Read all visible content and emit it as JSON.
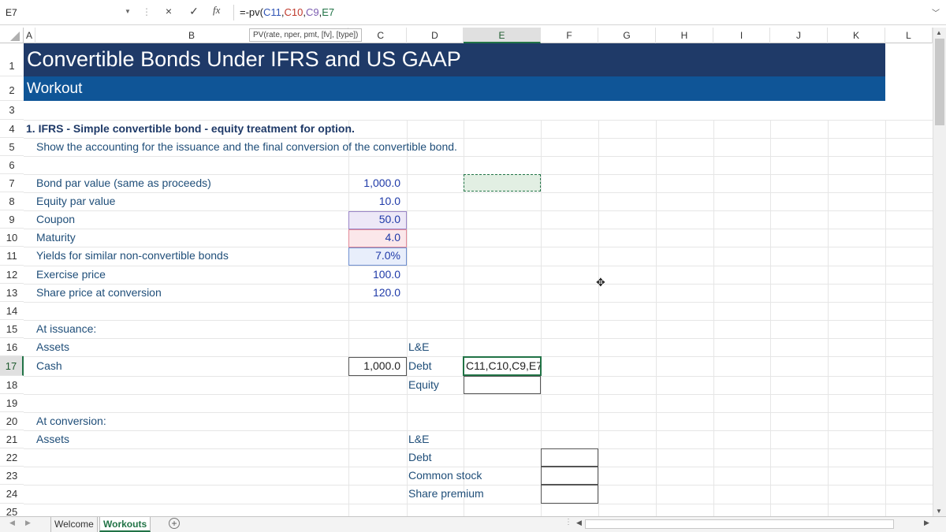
{
  "formula_bar": {
    "name_box": "E7",
    "cancel_icon": "×",
    "enter_icon": "✓",
    "fx_label": "fx",
    "formula_prefix": "=-pv(",
    "ref1": "C11",
    "comma1": ",",
    "ref2": "C10",
    "comma2": ",",
    "ref3": "C9",
    "comma3": ",",
    "ref4": "E7",
    "ref_colors": {
      "C11": "#2f54b5",
      "C10": "#c0392b",
      "C9": "#7b5cb0",
      "E7": "#217346"
    }
  },
  "tooltip": "PV(rate, nper, pmt, [fv], [type])",
  "columns": [
    "A",
    "B",
    "C",
    "D",
    "E",
    "F",
    "G",
    "H",
    "I",
    "J",
    "K",
    "L"
  ],
  "rows": [
    "1",
    "2",
    "3",
    "4",
    "5",
    "6",
    "7",
    "8",
    "9",
    "10",
    "11",
    "12",
    "13",
    "14",
    "15",
    "16",
    "17",
    "18",
    "19",
    "20",
    "21",
    "22",
    "23",
    "24",
    "25"
  ],
  "sheet": {
    "title": "Convertible Bonds Under IFRS and US GAAP",
    "subtitle": "Workout",
    "section_heading": "1. IFRS - Simple convertible bond - equity treatment for option.",
    "instruction": "Show the accounting for the issuance and the final conversion of the convertible bond.",
    "inputs": [
      {
        "label": "Bond par value (same as proceeds)",
        "value": "1,000.0"
      },
      {
        "label": "Equity par value",
        "value": "10.0"
      },
      {
        "label": "Coupon",
        "value": "50.0"
      },
      {
        "label": "Maturity",
        "value": "4.0"
      },
      {
        "label": "Yields for similar non-convertible bonds",
        "value": "7.0%"
      },
      {
        "label": "Exercise price",
        "value": "100.0"
      },
      {
        "label": "Share price at conversion",
        "value": "120.0"
      }
    ],
    "issuance": {
      "heading": "At issuance:",
      "assets_label": "Assets",
      "le_label": "L&E",
      "cash_label": "Cash",
      "cash_value": "1,000.0",
      "debt_label": "Debt",
      "editing_text": "C11,C10,C9,E7",
      "equity_label": "Equity"
    },
    "conversion": {
      "heading": "At conversion:",
      "assets_label": "Assets",
      "le_label": "L&E",
      "debt_label": "Debt",
      "common_stock_label": "Common stock",
      "share_premium_label": "Share premium"
    }
  },
  "tabs": {
    "sheets": [
      "Welcome",
      "Workouts"
    ],
    "active": "Workouts",
    "add_icon": "+"
  }
}
